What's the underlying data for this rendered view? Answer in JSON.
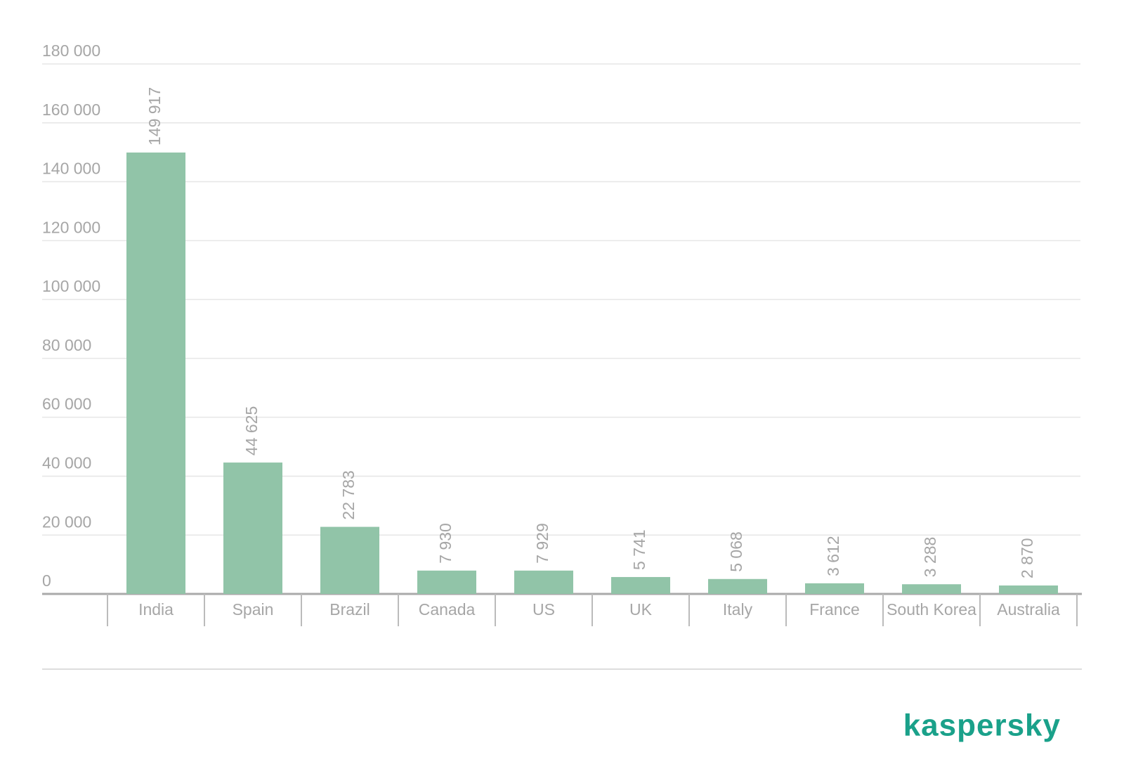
{
  "chart_data": {
    "type": "bar",
    "categories": [
      "India",
      "Spain",
      "Brazil",
      "Canada",
      "US",
      "UK",
      "Italy",
      "France",
      "South Korea",
      "Australia"
    ],
    "values": [
      149917,
      44625,
      22783,
      7930,
      7929,
      5741,
      5068,
      3612,
      3288,
      2870
    ],
    "value_labels": [
      "149 917",
      "44 625",
      "22 783",
      "7 930",
      "7 929",
      "5 741",
      "5 068",
      "3 612",
      "3 288",
      "2 870"
    ],
    "color": "#91c4a8",
    "ylim": [
      0,
      180000
    ],
    "yticks": [
      0,
      {
        "value": 20000,
        "label": "20 000"
      },
      {
        "value": 40000,
        "label": "40 000"
      },
      {
        "value": 60000,
        "label": "60 000"
      },
      {
        "value": 80000,
        "label": "80 000"
      },
      {
        "value": 100000,
        "label": "100 000"
      },
      {
        "value": 120000,
        "label": "120 000"
      },
      {
        "value": 140000,
        "label": "140 000"
      },
      {
        "value": 160000,
        "label": "160 000"
      },
      {
        "value": 180000,
        "label": "180 000"
      }
    ],
    "grid": true,
    "logo": "kaspersky"
  }
}
